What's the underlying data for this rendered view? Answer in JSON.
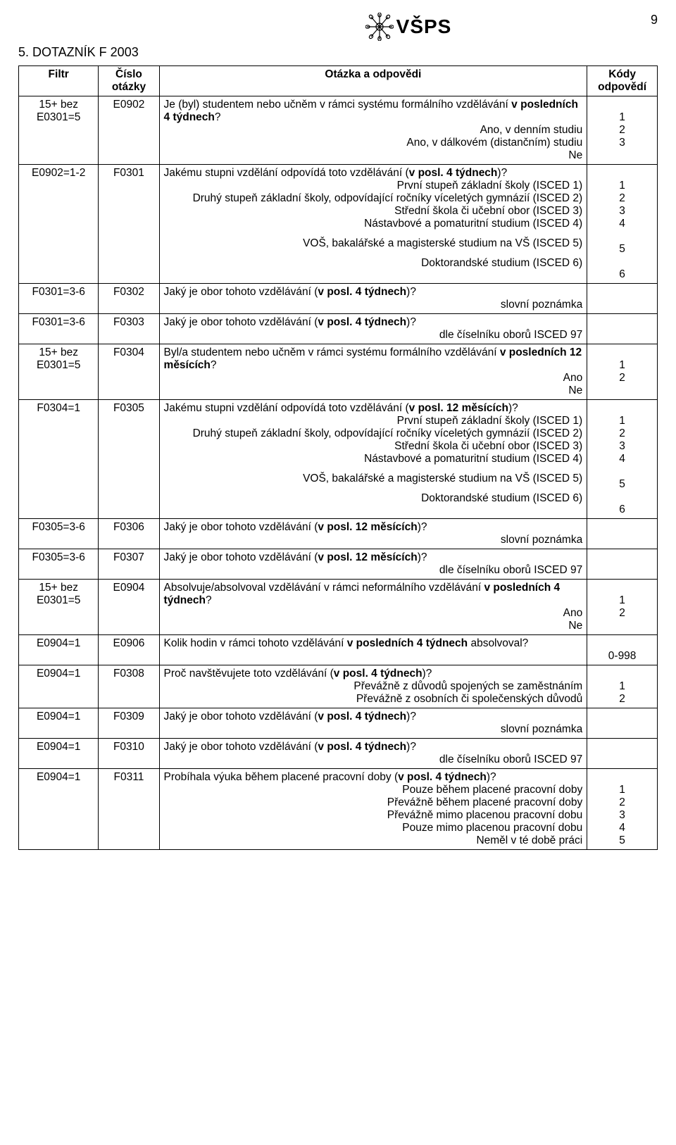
{
  "page_number": "9",
  "logo_text": "VŠPS",
  "section_title": "5. DOTAZNÍK F 2003",
  "headers": {
    "filter": "Filtr",
    "num": "Číslo otázky",
    "question": "Otázka a odpovědi",
    "codes": "Kódy odpovědí"
  },
  "rows": [
    {
      "filter": "15+ bez E0301=5",
      "num": "E0902",
      "q_lines": [
        {
          "t": "Je (byl) studentem nebo učněm v rámci systému formálního vzdělávání <b>v posledních 4 týdnech</b>?",
          "a": "left"
        },
        {
          "t": "Ano, v denním studiu",
          "a": "right"
        },
        {
          "t": "Ano, v dálkovém (distančním) studiu",
          "a": "right"
        },
        {
          "t": "Ne",
          "a": "right"
        }
      ],
      "codes": "\n1\n2\n3"
    },
    {
      "filter": "E0902=1-2",
      "num": "F0301",
      "q_lines": [
        {
          "t": "Jakému stupni vzdělání odpovídá toto vzdělávání (<b>v posl. 4 týdnech</b>)?",
          "a": "left"
        },
        {
          "t": "První stupeň základní školy (ISCED 1)",
          "a": "right"
        },
        {
          "t": "Druhý stupeň základní školy, odpovídající ročníky víceletých gymnázií (ISCED 2)",
          "a": "right"
        },
        {
          "t": "Střední škola či učební obor (ISCED 3)",
          "a": "right"
        },
        {
          "t": "Nástavbové a  pomaturitní studium  (ISCED 4)",
          "a": "right"
        },
        {
          "t": "VOŠ, bakalářské a magisterské studium na VŠ (ISCED 5)",
          "a": "right",
          "pad": true
        },
        {
          "t": "Doktorandské studium (ISCED 6)",
          "a": "right",
          "pad": true
        }
      ],
      "codes": "\n1\n2\n3\n4\n\n5\n\n6"
    },
    {
      "filter": "F0301=3-6",
      "num": "F0302",
      "q_lines": [
        {
          "t": "Jaký je obor tohoto vzdělávání (<b>v posl. 4 týdnech</b>)?",
          "a": "left"
        },
        {
          "t": "slovní poznámka",
          "a": "right"
        }
      ],
      "codes": ""
    },
    {
      "filter": "F0301=3-6",
      "num": "F0303",
      "q_lines": [
        {
          "t": "Jaký je obor tohoto vzdělávání (<b>v posl. 4 týdnech</b>)?",
          "a": "left"
        },
        {
          "t": "dle číselníku oborů ISCED 97",
          "a": "right"
        }
      ],
      "codes": ""
    },
    {
      "filter": "15+ bez E0301=5",
      "num": "F0304",
      "q_lines": [
        {
          "t": "Byl/a studentem nebo učněm v rámci systému formálního vzdělávání <b>v posledních 12 měsících</b>?",
          "a": "left"
        },
        {
          "t": "Ano",
          "a": "right"
        },
        {
          "t": "Ne",
          "a": "right"
        }
      ],
      "codes": "\n1\n2"
    },
    {
      "filter": "F0304=1",
      "num": "F0305",
      "q_lines": [
        {
          "t": "Jakému stupni vzdělání odpovídá toto vzdělávání (<b>v posl. 12 měsících</b>)?",
          "a": "left"
        },
        {
          "t": "První stupeň základní školy (ISCED 1)",
          "a": "right"
        },
        {
          "t": "Druhý stupeň základní školy, odpovídající ročníky víceletých gymnázií (ISCED 2)",
          "a": "right"
        },
        {
          "t": "Střední škola či učební obor (ISCED 3)",
          "a": "right"
        },
        {
          "t": "Nástavbové a  pomaturitní studium  (ISCED 4)",
          "a": "right"
        },
        {
          "t": "VOŠ, bakalářské a magisterské studium na VŠ (ISCED 5)",
          "a": "right",
          "pad": true
        },
        {
          "t": "Doktorandské studium (ISCED 6)",
          "a": "right",
          "pad": true
        }
      ],
      "codes": "\n1\n2\n3\n4\n\n5\n\n6"
    },
    {
      "filter": "F0305=3-6",
      "num": "F0306",
      "q_lines": [
        {
          "t": "Jaký je obor tohoto vzdělávání (<b>v posl. 12 měsících</b>)?",
          "a": "left"
        },
        {
          "t": "slovní poznámka",
          "a": "right"
        }
      ],
      "codes": ""
    },
    {
      "filter": "F0305=3-6",
      "num": "F0307",
      "q_lines": [
        {
          "t": "Jaký je obor tohoto vzdělávání (<b>v posl. 12 měsících</b>)?",
          "a": "left"
        },
        {
          "t": "dle číselníku oborů ISCED 97",
          "a": "right"
        }
      ],
      "codes": ""
    },
    {
      "filter": "15+ bez E0301=5",
      "num": "E0904",
      "q_lines": [
        {
          "t": "Absolvuje/absolvoval vzdělávání v rámci neformálního vzdělávání <b>v posledních 4 týdnech</b>?",
          "a": "left"
        },
        {
          "t": "Ano",
          "a": "right"
        },
        {
          "t": "Ne",
          "a": "right"
        }
      ],
      "codes": "\n1\n2"
    },
    {
      "filter": "E0904=1",
      "num": "E0906",
      "q_lines": [
        {
          "t": "Kolik hodin v rámci tohoto vzdělávání <b>v posledních 4 týdnech</b> absolvoval?",
          "a": "left"
        }
      ],
      "codes": "\n0-998"
    },
    {
      "filter": "E0904=1",
      "num": "F0308",
      "q_lines": [
        {
          "t": "Proč navštěvujete toto vzdělávání (<b>v posl. 4 týdnech</b>)?",
          "a": "left"
        },
        {
          "t": "Převážně z důvodů spojených se zaměstnáním",
          "a": "right"
        },
        {
          "t": "Převážně z osobních  či společenských důvodů",
          "a": "right"
        }
      ],
      "codes": "\n1\n2"
    },
    {
      "filter": "E0904=1",
      "num": "F0309",
      "q_lines": [
        {
          "t": "Jaký je obor tohoto vzdělávání (<b>v posl. 4 týdnech</b>)?",
          "a": "left"
        },
        {
          "t": "slovní poznámka",
          "a": "right"
        }
      ],
      "codes": ""
    },
    {
      "filter": "E0904=1",
      "num": "F0310",
      "q_lines": [
        {
          "t": "Jaký je obor tohoto vzdělávání (<b>v posl. 4 týdnech</b>)?",
          "a": "left"
        },
        {
          "t": "dle číselníku oborů ISCED 97",
          "a": "right"
        }
      ],
      "codes": ""
    },
    {
      "filter": "E0904=1",
      "num": "F0311",
      "q_lines": [
        {
          "t": "Probíhala výuka během placené pracovní doby (<b>v posl. 4 týdnech</b>)?",
          "a": "left"
        },
        {
          "t": "Pouze během placené pracovní doby",
          "a": "right"
        },
        {
          "t": "Převážně během placené pracovní doby",
          "a": "right"
        },
        {
          "t": "Převážně mimo placenou pracovní dobu",
          "a": "right"
        },
        {
          "t": "Pouze mimo placenou pracovní dobu",
          "a": "right"
        },
        {
          "t": "Neměl v té době práci",
          "a": "right"
        }
      ],
      "codes": "\n1\n2\n3\n4\n5"
    }
  ]
}
